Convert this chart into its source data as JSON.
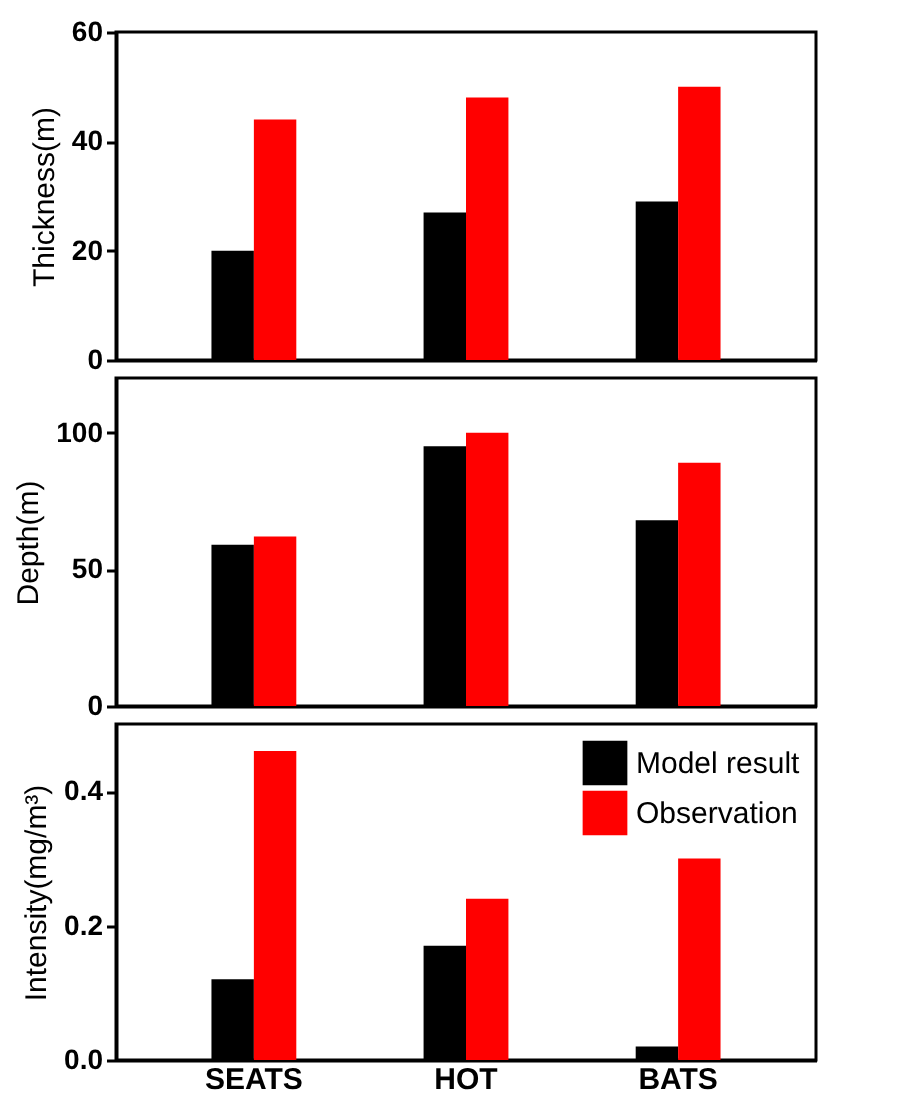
{
  "chart_data": [
    {
      "type": "bar",
      "ylabel": "Thickness(m)",
      "ylim": [
        0,
        60
      ],
      "yticks": [
        0,
        20,
        40,
        60
      ],
      "tick_labels": "y",
      "series": [
        {
          "color": "#000000",
          "values": [
            20,
            27,
            29
          ]
        },
        {
          "color": "#ff0000",
          "values": [
            44,
            48,
            50
          ]
        }
      ]
    },
    {
      "type": "bar",
      "ylabel": "Depth(m)",
      "ylim": [
        0,
        120
      ],
      "yticks": [
        0,
        50,
        100
      ],
      "tick_labels": "y",
      "series": [
        {
          "color": "#000000",
          "values": [
            59,
            95,
            68
          ]
        },
        {
          "color": "#ff0000",
          "values": [
            62,
            100,
            89
          ]
        }
      ]
    },
    {
      "type": "bar",
      "ylabel": "Intensity(mg/m³)",
      "categories": [
        "SEATS",
        "HOT",
        "BATS"
      ],
      "ylim": [
        0,
        0.5
      ],
      "yticks": [
        {
          "value": 0,
          "label": "0.0"
        },
        0.2,
        0.4
      ],
      "legend": "top right",
      "series": [
        {
          "name": "Model result",
          "color": "#000000",
          "values": [
            0.12,
            0.17,
            0.02
          ]
        },
        {
          "name": "Observation",
          "color": "#ff0000",
          "values": [
            0.46,
            0.24,
            0.3
          ]
        }
      ]
    }
  ]
}
